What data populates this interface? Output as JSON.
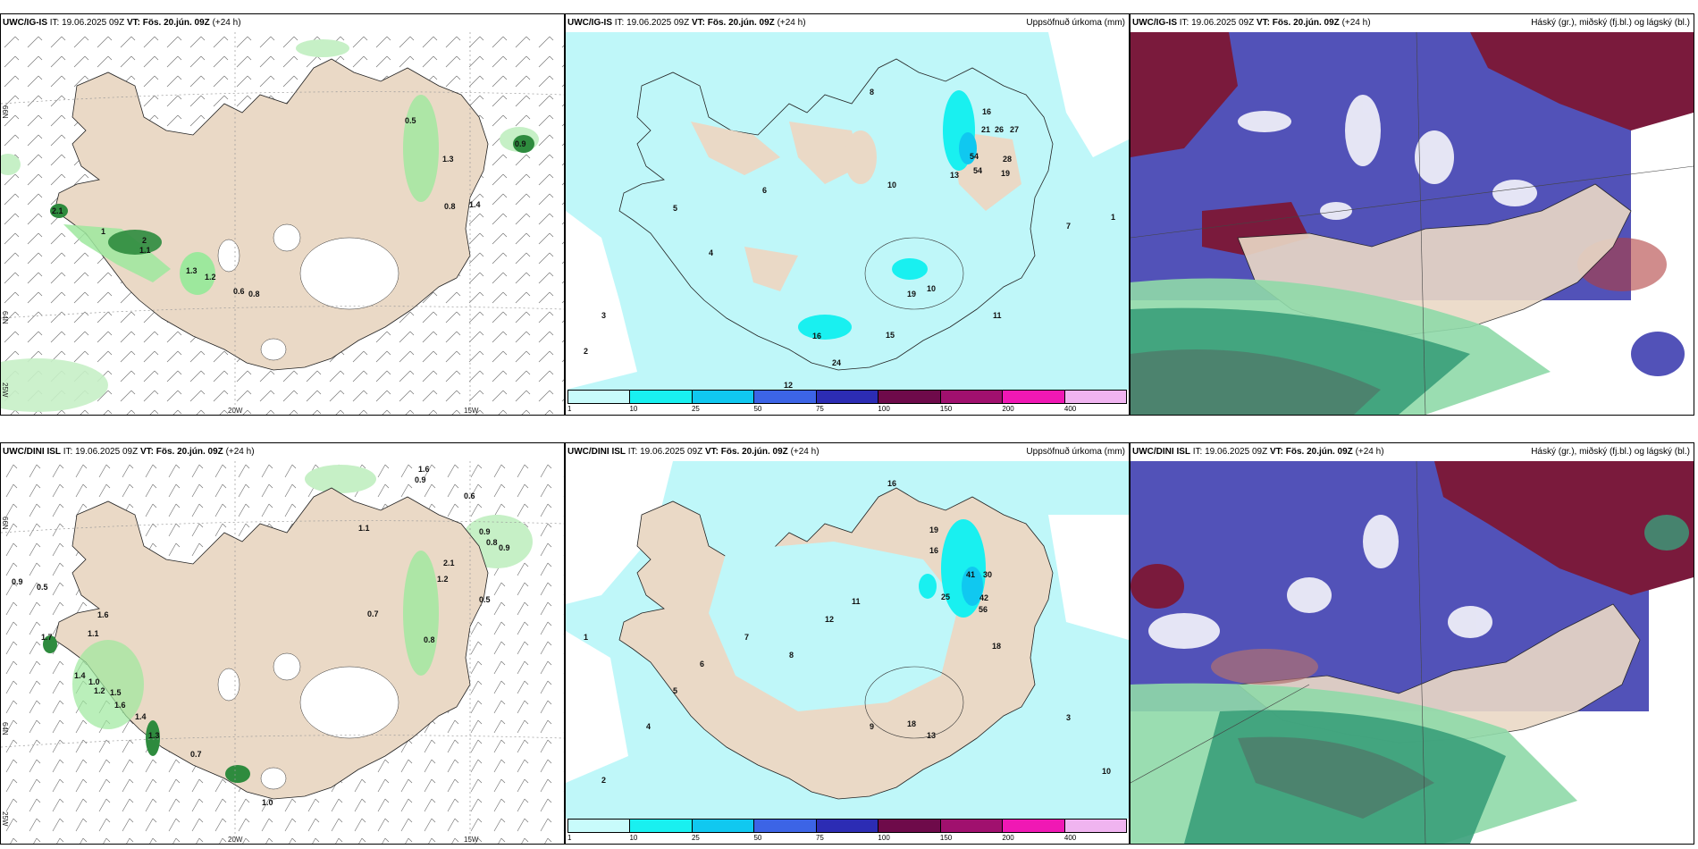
{
  "panels": [
    {
      "model": "UWC/IG-IS",
      "it_label": "IT:",
      "it_value": "19.06.2025 09Z",
      "vt_label": "VT:",
      "vt_value": "Fös. 20.jún. 09Z",
      "lead": "(+24 h)",
      "right_title": ""
    },
    {
      "model": "UWC/IG-IS",
      "it_label": "IT:",
      "it_value": "19.06.2025 09Z",
      "vt_label": "VT:",
      "vt_value": "Fös. 20.jún. 09Z",
      "lead": "(+24 h)",
      "right_title": "Uppsöfnuð úrkoma (mm)"
    },
    {
      "model": "UWC/IG-IS",
      "it_label": "IT:",
      "it_value": "19.06.2025 09Z",
      "vt_label": "VT:",
      "vt_value": "Fös. 20.jún. 09Z",
      "lead": "(+24 h)",
      "right_title": "Háský (gr.), miðský (fj.bl.) og lágský (bl.)"
    },
    {
      "model": "UWC/DINI ISL",
      "it_label": "IT:",
      "it_value": "19.06.2025 09Z",
      "vt_label": "VT:",
      "vt_value": "Fös. 20.jún. 09Z",
      "lead": "(+24 h)",
      "right_title": ""
    },
    {
      "model": "UWC/DINI ISL",
      "it_label": "IT:",
      "it_value": "19.06.2025 09Z",
      "vt_label": "VT:",
      "vt_value": "Fös. 20.jún. 09Z",
      "lead": "(+24 h)",
      "right_title": "Uppsöfnuð úrkoma (mm)"
    },
    {
      "model": "UWC/DINI ISL",
      "it_label": "IT:",
      "it_value": "19.06.2025 09Z",
      "vt_label": "VT:",
      "vt_value": "Fös. 20.jún. 09Z",
      "lead": "(+24 h)",
      "right_title": "Háský (gr.), miðský (fj.bl.) og lágský (bl.)"
    }
  ],
  "axis_labels": {
    "lat66": "66N",
    "lat64": "64N",
    "lon25": "25W",
    "lon20": "20W",
    "lon15": "15W"
  },
  "legend": {
    "ticks": [
      "1",
      "10",
      "25",
      "50",
      "75",
      "100",
      "150",
      "200",
      "400"
    ],
    "colors": [
      "#c8fbfb",
      "#19f0f0",
      "#10c8f0",
      "#3c64e6",
      "#2c2cb4",
      "#6e0a4a",
      "#a0106e",
      "#f018b4",
      "#f0b4f0"
    ]
  },
  "wind_values_top": [
    "0.5",
    "0.9",
    "1.3",
    "0.8",
    "1.4",
    "2.1",
    "1.3",
    "1.2",
    "0.6",
    "0.8",
    "1.1",
    "2",
    "1"
  ],
  "wind_values_bottom": [
    "1.6",
    "0.9",
    "0.6",
    "1.1",
    "0.9",
    "0.8",
    "0.9",
    "2.1",
    "1.2",
    "0.5",
    "0.7",
    "0.9",
    "0.5",
    "1.6",
    "1.7",
    "1.1",
    "0.8",
    "1.4",
    "1.0",
    "1.2",
    "1.5",
    "1.6",
    "1.4",
    "1.3",
    "0.7",
    "1.0"
  ],
  "precip_values_top": [
    "54",
    "54",
    "28",
    "19",
    "21",
    "26",
    "27",
    "16",
    "13",
    "19",
    "10",
    "15",
    "16",
    "24",
    "12",
    "11",
    "10",
    "8",
    "7",
    "6",
    "5",
    "4",
    "3",
    "2",
    "1"
  ],
  "precip_values_bottom": [
    "41",
    "30",
    "42",
    "56",
    "25",
    "19",
    "16",
    "18",
    "16",
    "18",
    "13",
    "12",
    "11",
    "10",
    "9",
    "8",
    "7",
    "6",
    "5",
    "4",
    "3",
    "2",
    "1"
  ],
  "colors": {
    "land": "#ead9c6",
    "precip_light": "#bff7f9",
    "cloud_high": "#7a1a3c",
    "cloud_mid": "#5252b8",
    "cloud_low": "#3a9e7a"
  }
}
